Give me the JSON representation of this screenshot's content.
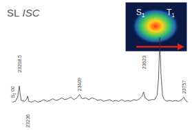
{
  "chart_data": {
    "type": "line",
    "title": "SL ISC",
    "color": "#333333",
    "tick_labels": false,
    "xlim": [
      23176,
      23773
    ],
    "ylim": [
      -20,
      100
    ],
    "x": [
      23185,
      23195,
      23203,
      23206,
      23208.5,
      23211,
      23215,
      23225,
      23232,
      23236,
      23240,
      23250,
      23260,
      23270,
      23280,
      23290,
      23300,
      23310,
      23320,
      23330,
      23340,
      23350,
      23360,
      23370,
      23380,
      23390,
      23400,
      23409,
      23418,
      23430,
      23440,
      23450,
      23460,
      23470,
      23480,
      23490,
      23500,
      23510,
      23520,
      23530,
      23540,
      23550,
      23560,
      23570,
      23580,
      23590,
      23600,
      23610,
      23618,
      23623,
      23628,
      23640,
      23650,
      23660,
      23668,
      23673,
      23677,
      23681,
      23686,
      23692,
      23700,
      23710,
      23720,
      23730,
      23740,
      23750,
      23757,
      23763,
      23770
    ],
    "values": [
      12,
      13,
      18,
      26,
      31,
      22,
      14,
      13,
      15,
      19,
      13,
      12,
      14,
      12,
      13,
      15,
      13,
      14,
      16,
      14,
      15,
      17,
      15,
      16,
      18,
      15,
      17,
      21,
      16,
      17,
      15,
      17,
      16,
      14,
      15,
      13,
      14,
      15,
      13,
      14,
      13,
      15,
      13,
      14,
      13,
      15,
      14,
      16,
      19,
      24,
      17,
      14,
      15,
      15,
      20,
      40,
      88,
      45,
      20,
      15,
      13,
      14,
      13,
      14,
      13,
      15,
      18,
      14,
      12
    ],
    "annotations": [
      {
        "text": "S1 00",
        "x": 23185,
        "y": 17
      },
      {
        "text": "23208.5",
        "x": 23208.5,
        "y": 47
      },
      {
        "text": "23236",
        "x": 23236,
        "y": -18
      },
      {
        "text": "23409",
        "x": 23409,
        "y": 25
      },
      {
        "text": "23623",
        "x": 23623,
        "y": 51
      },
      {
        "text": "23757",
        "x": 23757,
        "y": 22
      }
    ],
    "inset_labels": [
      "S1",
      "T1"
    ]
  }
}
